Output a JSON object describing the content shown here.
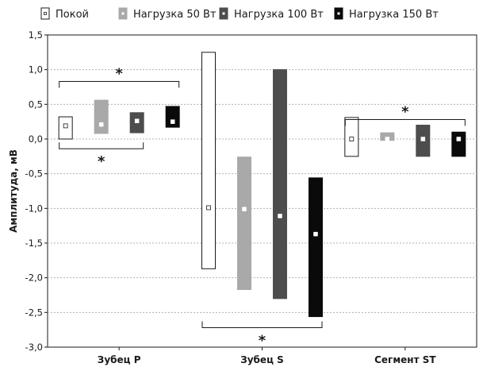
{
  "chart_data": {
    "type": "box",
    "ylabel": "Амплитуда, мВ",
    "ylim": [
      -3.0,
      1.5
    ],
    "yticks": [
      1.5,
      1.0,
      0.5,
      0.0,
      -0.5,
      -1.0,
      -1.5,
      -2.0,
      -2.5,
      -3.0
    ],
    "ytick_labels": [
      "1,5",
      "1,0",
      "0,5",
      "0,0",
      "-0,5",
      "-1,0",
      "-1,5",
      "-2,0",
      "-2,5",
      "-3,0"
    ],
    "grid": true,
    "legend_position": "top",
    "categories": [
      "Зубец P",
      "Зубец S",
      "Сегмент ST"
    ],
    "series": [
      {
        "name": "Покой",
        "fill": "#ffffff",
        "stroke": "#1a1a1a",
        "marker": "#ffffff",
        "values": [
          {
            "median": 0.19,
            "low": 0.0,
            "high": 0.32
          },
          {
            "median": -0.99,
            "low": -1.87,
            "high": 1.25
          },
          {
            "median": 0.0,
            "low": -0.25,
            "high": 0.31
          }
        ]
      },
      {
        "name": "Нагрузка 50 Вт",
        "fill": "#a9a9a9",
        "stroke": "#a9a9a9",
        "marker": "#ffffff",
        "values": [
          {
            "median": 0.21,
            "low": 0.08,
            "high": 0.56
          },
          {
            "median": -1.01,
            "low": -2.17,
            "high": -0.26
          },
          {
            "median": 0.0,
            "low": -0.02,
            "high": 0.09
          }
        ]
      },
      {
        "name": "Нагрузка 100 Вт",
        "fill": "#4d4d4d",
        "stroke": "#4d4d4d",
        "marker": "#ffffff",
        "values": [
          {
            "median": 0.26,
            "low": 0.09,
            "high": 0.38
          },
          {
            "median": -1.11,
            "low": -2.3,
            "high": 1.0
          },
          {
            "median": 0.0,
            "low": -0.25,
            "high": 0.2
          }
        ]
      },
      {
        "name": "Нагрузка 150 Вт",
        "fill": "#0a0a0a",
        "stroke": "#0a0a0a",
        "marker": "#ffffff",
        "values": [
          {
            "median": 0.25,
            "low": 0.17,
            "high": 0.47
          },
          {
            "median": -1.37,
            "low": -2.56,
            "high": -0.56
          },
          {
            "median": 0.0,
            "low": -0.25,
            "high": 0.1
          }
        ]
      }
    ],
    "significance": [
      {
        "category": 0,
        "from_series": 0,
        "to_series": 3,
        "level": 0.83,
        "side": "above",
        "mark": "*"
      },
      {
        "category": 0,
        "from_series": 0,
        "to_series": 2,
        "level": -0.14,
        "side": "below",
        "mark": "*"
      },
      {
        "category": 1,
        "from_series": 0,
        "to_series": 3,
        "level": -2.72,
        "side": "below",
        "mark": "*"
      },
      {
        "category": 2,
        "from_series": 0,
        "to_series": 3,
        "level": 0.28,
        "side": "above",
        "mark": "*"
      }
    ]
  }
}
